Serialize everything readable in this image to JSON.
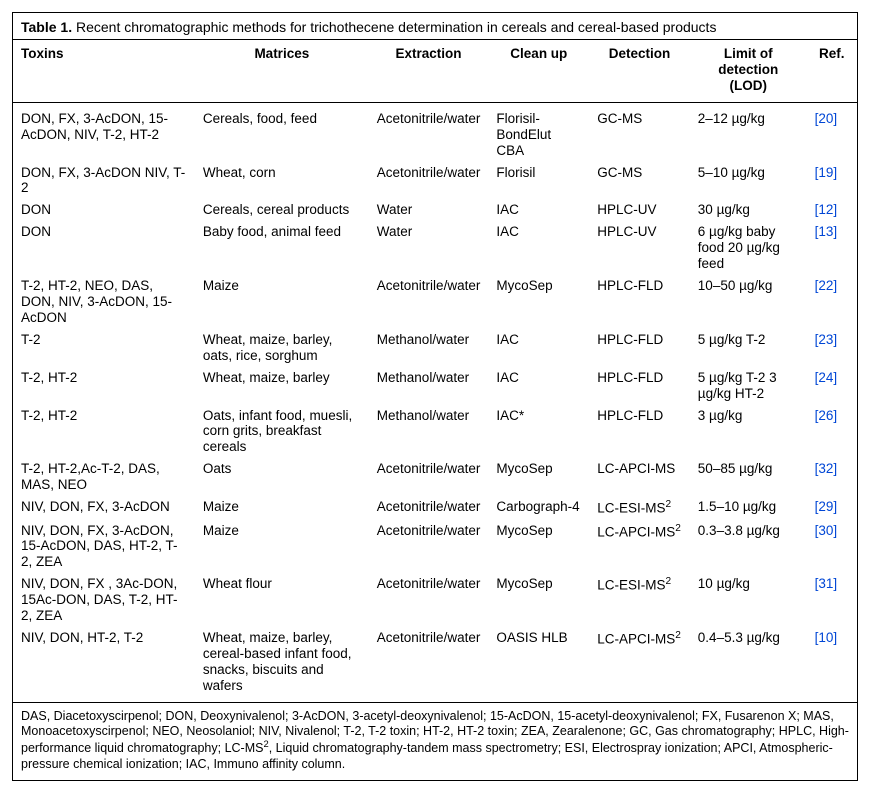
{
  "caption_label": "Table 1.",
  "caption_text": "Recent chromatographic methods for trichothecene determination in cereals and cereal-based products",
  "columns": {
    "toxins": "Toxins",
    "matrices": "Matrices",
    "extraction": "Extraction",
    "cleanup": "Clean up",
    "detection": "Detection",
    "lod": "Limit of detection (LOD)",
    "ref": "Ref."
  },
  "rows": [
    {
      "toxins": "DON, FX, 3-AcDON, 15-AcDON, NIV, T-2, HT-2",
      "matrices": "Cereals, food, feed",
      "extraction": "Acetonitrile/water",
      "cleanup": "Florisil-BondElut CBA",
      "detection": "GC-MS",
      "lod": "2–12 µg/kg",
      "ref": "[20]"
    },
    {
      "toxins": "DON, FX, 3-AcDON NIV, T-2",
      "matrices": "Wheat, corn",
      "extraction": "Acetonitrile/water",
      "cleanup": "Florisil",
      "detection": "GC-MS",
      "lod": "5–10 µg/kg",
      "ref": "[19]"
    },
    {
      "toxins": "DON",
      "matrices": "Cereals, cereal products",
      "extraction": "Water",
      "cleanup": "IAC",
      "detection": "HPLC-UV",
      "lod": "30 µg/kg",
      "ref": "[12]"
    },
    {
      "toxins": "DON",
      "matrices": "Baby food, animal feed",
      "extraction": "Water",
      "cleanup": "IAC",
      "detection": "HPLC-UV",
      "lod": "6 µg/kg baby food 20 µg/kg feed",
      "ref": "[13]"
    },
    {
      "toxins": "T-2, HT-2, NEO, DAS, DON, NIV, 3-AcDON, 15-AcDON",
      "matrices": "Maize",
      "extraction": "Acetonitrile/water",
      "cleanup": "MycoSep",
      "detection": "HPLC-FLD",
      "lod": "10–50 µg/kg",
      "ref": "[22]"
    },
    {
      "toxins": "T-2",
      "matrices": "Wheat, maize, barley, oats, rice, sorghum",
      "extraction": "Methanol/water",
      "cleanup": "IAC",
      "detection": "HPLC-FLD",
      "lod": "5 µg/kg T-2",
      "ref": "[23]"
    },
    {
      "toxins": "T-2, HT-2",
      "matrices": "Wheat, maize, barley",
      "extraction": "Methanol/water",
      "cleanup": "IAC",
      "detection": "HPLC-FLD",
      "lod": "5 µg/kg T-2 3 µg/kg HT-2",
      "ref": "[24]"
    },
    {
      "toxins": "T-2, HT-2",
      "matrices": "Oats, infant food, muesli, corn grits, breakfast cereals",
      "extraction": "Methanol/water",
      "cleanup": "IAC*",
      "detection": "HPLC-FLD",
      "lod": "3 µg/kg",
      "ref": "[26]"
    },
    {
      "toxins": "T-2, HT-2,Ac-T-2, DAS, MAS, NEO",
      "matrices": "Oats",
      "extraction": "Acetonitrile/water",
      "cleanup": "MycoSep",
      "detection": "LC-APCI-MS",
      "lod": "50–85 µg/kg",
      "ref": "[32]"
    },
    {
      "toxins": "NIV, DON, FX, 3-AcDON",
      "matrices": "Maize",
      "extraction": "Acetonitrile/water",
      "cleanup": "Carbograph-4",
      "detection_html": "LC-ESI-MS<sup>2</sup>",
      "lod": "1.5–10 µg/kg",
      "ref": "[29]"
    },
    {
      "toxins": "NIV, DON, FX, 3-AcDON, 15-AcDON, DAS, HT-2, T-2, ZEA",
      "matrices": "Maize",
      "extraction": "Acetonitrile/water",
      "cleanup": "MycoSep",
      "detection_html": "LC-APCI-MS<sup>2</sup>",
      "lod": "0.3–3.8 µg/kg",
      "ref": "[30]"
    },
    {
      "toxins": "NIV, DON, FX , 3Ac-DON, 15Ac-DON, DAS, T-2, HT-2, ZEA",
      "matrices": "Wheat flour",
      "extraction": "Acetonitrile/water",
      "cleanup": "MycoSep",
      "detection_html": "LC-ESI-MS<sup>2</sup>",
      "lod": "10 µg/kg",
      "ref": "[31]"
    },
    {
      "toxins": "NIV, DON, HT-2, T-2",
      "matrices": "Wheat, maize, barley, cereal-based infant food, snacks, biscuits and wafers",
      "extraction": "Acetonitrile/water",
      "cleanup": "OASIS HLB",
      "detection_html": "LC-APCI-MS<sup>2</sup>",
      "lod": "0.4–5.3 µg/kg",
      "ref": "[10]"
    }
  ],
  "footnote_html": "DAS, Diacetoxyscirpenol; DON, Deoxynivalenol; 3-AcDON, 3-acetyl-deoxynivalenol; 15-AcDON, 15-acetyl-deoxynivalenol; FX, Fusarenon X; MAS, Monoacetoxyscirpenol; NEO, Neosolaniol; NIV, Nivalenol; T-2, T-2 toxin; HT-2, HT-2 toxin; ZEA, Zearalenone; GC, Gas chromatography; HPLC, High-performance liquid chromatography; LC-MS<sup>2</sup>, Liquid chromatography-tandem mass spectrometry; ESI, Electrospray ionization; APCI, Atmospheric-pressure chemical ionization; IAC, Immuno affinity column.",
  "styles": {
    "border_color": "#000000",
    "ref_color": "#0046d5",
    "background_color": "#ffffff",
    "caption_fontsize": 14,
    "body_fontsize": 13.5,
    "footnote_fontsize": 12.5,
    "column_widths_pct": {
      "toxins": 22,
      "matrices": 21,
      "extraction": 13,
      "cleanup": 12,
      "detection": 12,
      "lod": 14,
      "ref": 6
    }
  }
}
